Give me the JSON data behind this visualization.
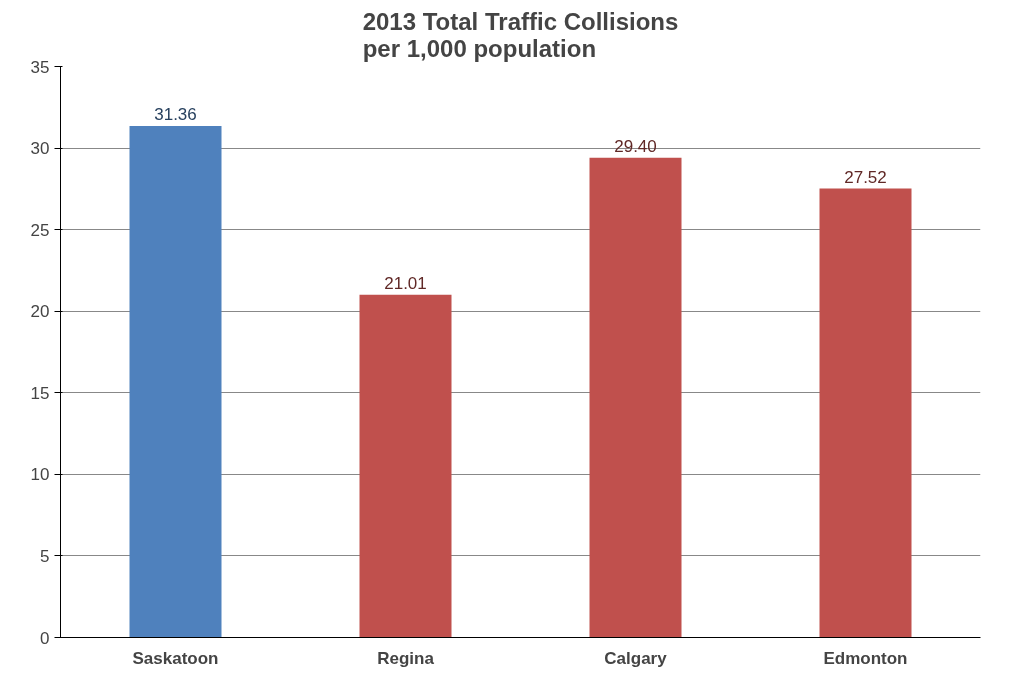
{
  "chart_data": {
    "type": "bar",
    "title": "2013 Total Traffic Collisions\nper 1,000 population",
    "categories": [
      "Saskatoon",
      "Regina",
      "Calgary",
      "Edmonton"
    ],
    "values": [
      31.36,
      21.01,
      29.4,
      27.52
    ],
    "colors": [
      "#4f81bd",
      "#c0504d",
      "#c0504d",
      "#c0504d"
    ],
    "value_labels": [
      "31.36",
      "21.01",
      "29.40",
      "27.52"
    ],
    "ylim": [
      0,
      35
    ],
    "yticks": [
      0,
      5,
      10,
      15,
      20,
      25,
      30,
      35
    ],
    "grid": "y"
  }
}
